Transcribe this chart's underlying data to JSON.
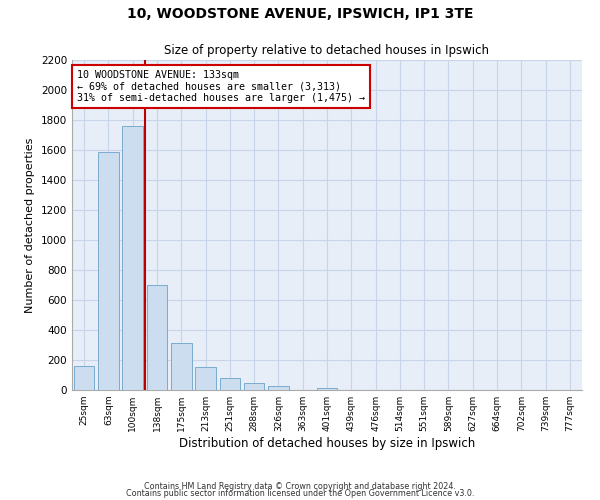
{
  "title": "10, WOODSTONE AVENUE, IPSWICH, IP1 3TE",
  "subtitle": "Size of property relative to detached houses in Ipswich",
  "xlabel": "Distribution of detached houses by size in Ipswich",
  "ylabel": "Number of detached properties",
  "bar_labels": [
    "25sqm",
    "63sqm",
    "100sqm",
    "138sqm",
    "175sqm",
    "213sqm",
    "251sqm",
    "288sqm",
    "326sqm",
    "363sqm",
    "401sqm",
    "439sqm",
    "476sqm",
    "514sqm",
    "551sqm",
    "589sqm",
    "627sqm",
    "664sqm",
    "702sqm",
    "739sqm",
    "777sqm"
  ],
  "bar_values": [
    160,
    1590,
    1760,
    700,
    315,
    155,
    80,
    50,
    25,
    0,
    15,
    0,
    0,
    0,
    0,
    0,
    0,
    0,
    0,
    0,
    0
  ],
  "bar_color": "#ccddf0",
  "bar_edge_color": "#7aabcf",
  "property_line_color": "#bb0000",
  "annotation_text": "10 WOODSTONE AVENUE: 133sqm\n← 69% of detached houses are smaller (3,313)\n31% of semi-detached houses are larger (1,475) →",
  "annotation_box_color": "#ffffff",
  "annotation_box_edge": "#cc0000",
  "ylim": [
    0,
    2200
  ],
  "yticks": [
    0,
    200,
    400,
    600,
    800,
    1000,
    1200,
    1400,
    1600,
    1800,
    2000,
    2200
  ],
  "grid_color": "#c8d4e8",
  "footer1": "Contains HM Land Registry data © Crown copyright and database right 2024.",
  "footer2": "Contains public sector information licensed under the Open Government Licence v3.0.",
  "bg_color": "#ffffff",
  "plot_bg_color": "#e8eef8"
}
